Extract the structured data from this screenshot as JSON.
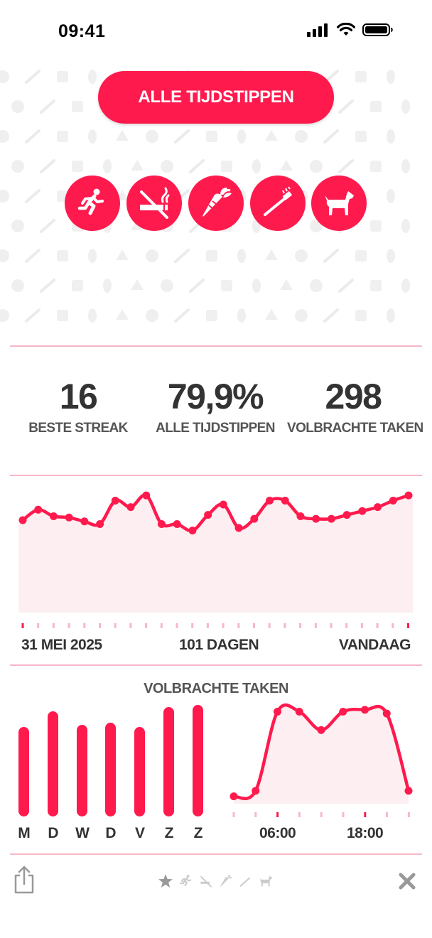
{
  "status_bar": {
    "time": "09:41"
  },
  "main_button": {
    "label": "ALLE TIJDSTIPPEN"
  },
  "habits": [
    {
      "icon": "running-person-icon"
    },
    {
      "icon": "no-smoking-icon"
    },
    {
      "icon": "carrot-icon"
    },
    {
      "icon": "toothbrush-icon"
    },
    {
      "icon": "dog-icon"
    }
  ],
  "stats": [
    {
      "value": "16",
      "label": "BESTE STREAK"
    },
    {
      "value": "79,9%",
      "label": "ALLE TIJDSTIPPEN"
    },
    {
      "value": "298",
      "label": "VOLBRACHTE TAKEN"
    }
  ],
  "timeline": {
    "start_label": "31 MEI 2025",
    "middle_label": "101 DAGEN",
    "end_label": "VANDAAG"
  },
  "completed_section": {
    "title": "VOLBRACHTE TAKEN"
  },
  "chart_data": [
    {
      "type": "area",
      "title": "",
      "values": [
        71,
        79,
        74,
        73,
        70,
        68,
        86,
        81,
        90,
        68,
        68,
        63,
        75,
        83,
        65,
        72,
        86,
        86,
        74,
        72,
        72,
        75,
        78,
        81,
        86,
        90
      ],
      "color": "#ff1a4e",
      "fill": "#fdeef1"
    },
    {
      "type": "bar",
      "title": "",
      "categories": [
        "M",
        "D",
        "W",
        "D",
        "V",
        "Z",
        "Z"
      ],
      "values": [
        41,
        48,
        42,
        43,
        41,
        50,
        51
      ],
      "color": "#ff1a4e"
    },
    {
      "type": "area",
      "title": "",
      "x_tick_labels": [
        "06:00",
        "18:00"
      ],
      "values": [
        8,
        14,
        100,
        100,
        80,
        100,
        102,
        98,
        14
      ],
      "color": "#ff1a4e",
      "fill": "#fdeef1"
    }
  ],
  "bottom_bar": {
    "share_icon": "share-icon",
    "close_icon": "close-icon",
    "page_dots": [
      "star-icon",
      "running-person-icon",
      "no-smoking-icon",
      "carrot-icon",
      "toothbrush-icon",
      "dog-icon"
    ]
  },
  "colors": {
    "accent": "#ff1a4e",
    "divider": "#f7b8c8",
    "area_fill": "#fdeef1"
  }
}
